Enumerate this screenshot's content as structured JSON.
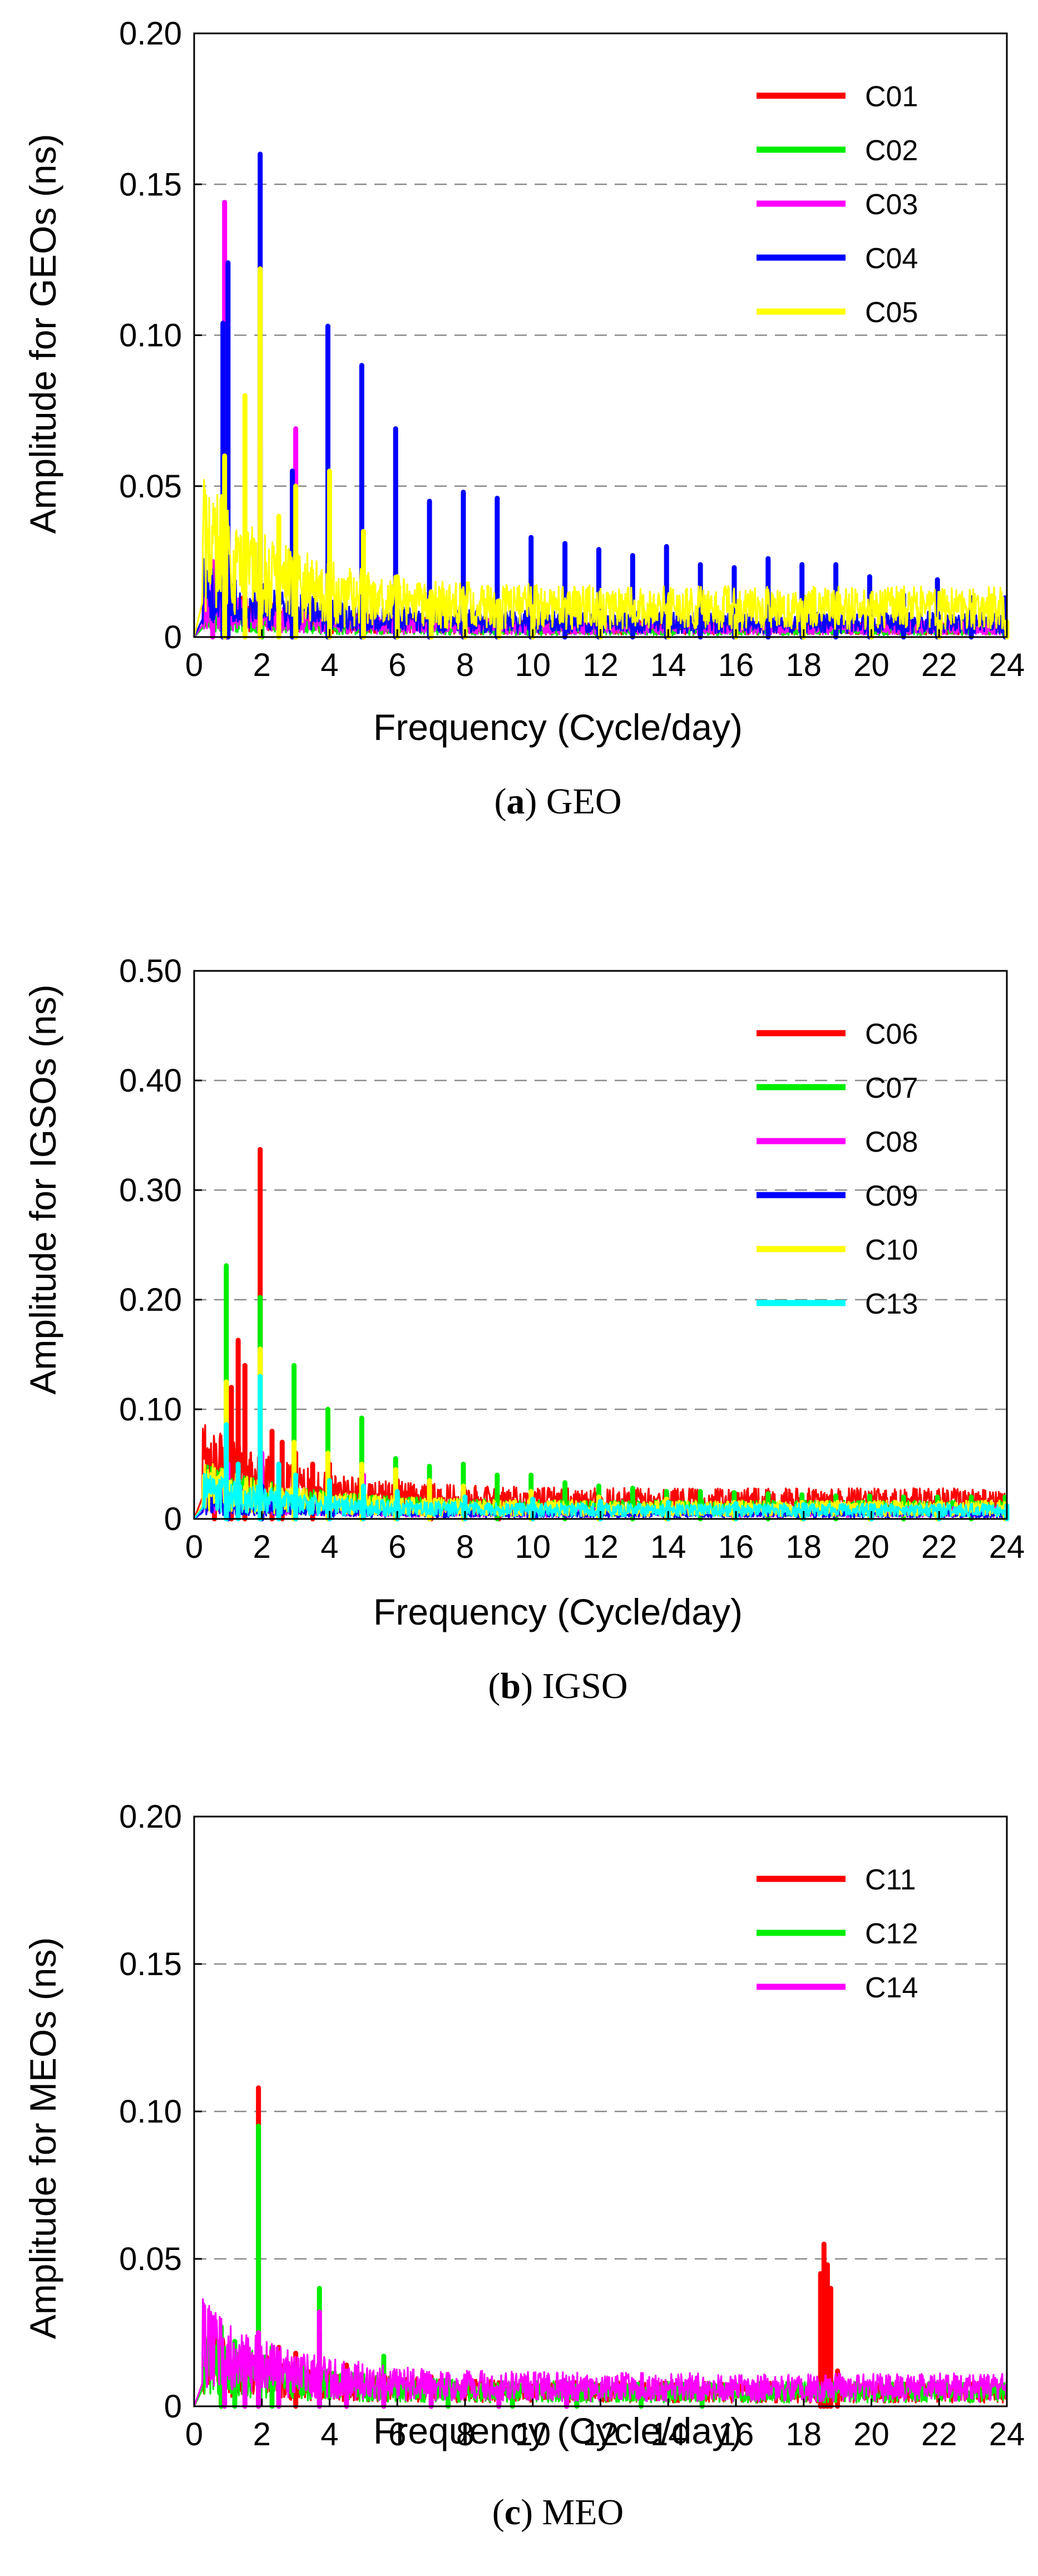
{
  "chart_data": [
    {
      "type": "line",
      "caption": {
        "open": "(",
        "letter": "a",
        "close": ") ",
        "text": "GEO"
      },
      "xlabel": "Frequency (Cycle/day)",
      "ylabel": "Amplitude for GEOs (ns)",
      "xlim": [
        0,
        24
      ],
      "ylim": [
        0,
        0.2
      ],
      "x_ticks": [
        "0",
        "2",
        "4",
        "6",
        "8",
        "10",
        "12",
        "14",
        "16",
        "18",
        "20",
        "22",
        "24"
      ],
      "y_ticks": [
        "0",
        "0.05",
        "0.10",
        "0.15",
        "0.20"
      ],
      "y_tick_values": [
        0,
        0.05,
        0.1,
        0.15,
        0.2
      ],
      "grid": "dashed horizontal",
      "legend_position": "top-right",
      "background_level": {
        "C01": 0.004,
        "C02": 0.003,
        "C03": 0.004,
        "C04": 0.006,
        "C05": 0.012
      },
      "series": [
        {
          "name": "C01",
          "color": "#ff0000",
          "peaks": [
            [
              0.95,
              0.006
            ],
            [
              2.0,
              0.01
            ],
            [
              3.0,
              0.007
            ],
            [
              5.0,
              0.005
            ]
          ]
        },
        {
          "name": "C02",
          "color": "#00ee00",
          "peaks": [
            [
              1.0,
              0.005
            ],
            [
              2.0,
              0.008
            ],
            [
              3.0,
              0.005
            ],
            [
              4.0,
              0.004
            ]
          ]
        },
        {
          "name": "C03",
          "color": "#ff00ff",
          "peaks": [
            [
              0.55,
              0.025
            ],
            [
              0.9,
              0.144
            ],
            [
              1.95,
              0.065
            ],
            [
              3.0,
              0.069
            ],
            [
              4.0,
              0.02
            ],
            [
              5.0,
              0.015
            ]
          ]
        },
        {
          "name": "C04",
          "color": "#0000ff",
          "peaks": [
            [
              0.85,
              0.104
            ],
            [
              1.0,
              0.124
            ],
            [
              1.95,
              0.16
            ],
            [
              2.9,
              0.055
            ],
            [
              3.95,
              0.103
            ],
            [
              4.95,
              0.09
            ],
            [
              5.95,
              0.069
            ],
            [
              6.95,
              0.045
            ],
            [
              7.95,
              0.048
            ],
            [
              8.95,
              0.046
            ],
            [
              9.95,
              0.033
            ],
            [
              10.95,
              0.031
            ],
            [
              11.95,
              0.029
            ],
            [
              12.95,
              0.027
            ],
            [
              13.95,
              0.03
            ],
            [
              14.95,
              0.024
            ],
            [
              15.95,
              0.023
            ],
            [
              16.95,
              0.026
            ],
            [
              17.95,
              0.024
            ],
            [
              18.95,
              0.024
            ],
            [
              19.95,
              0.02
            ],
            [
              20.95,
              0.014
            ],
            [
              21.95,
              0.019
            ],
            [
              22.95,
              0.013
            ],
            [
              23.95,
              0.013
            ]
          ]
        },
        {
          "name": "C05",
          "color": "#ffff00",
          "peaks": [
            [
              0.9,
              0.06
            ],
            [
              1.5,
              0.08
            ],
            [
              1.95,
              0.122
            ],
            [
              2.5,
              0.04
            ],
            [
              3.0,
              0.05
            ],
            [
              4.0,
              0.055
            ],
            [
              5.0,
              0.035
            ],
            [
              6.0,
              0.02
            ],
            [
              7.0,
              0.015
            ],
            [
              8.0,
              0.013
            ],
            [
              9.0,
              0.012
            ],
            [
              10.0,
              0.01
            ],
            [
              12.0,
              0.008
            ],
            [
              14.0,
              0.007
            ],
            [
              16.0,
              0.007
            ],
            [
              18.0,
              0.006
            ],
            [
              20.0,
              0.006
            ],
            [
              22.0,
              0.005
            ],
            [
              24.0,
              0.005
            ]
          ]
        }
      ]
    },
    {
      "type": "line",
      "caption": {
        "open": "(",
        "letter": "b",
        "close": ") ",
        "text": "IGSO"
      },
      "xlabel": "Frequency (Cycle/day)",
      "ylabel": "Amplitude for IGSOs (ns)",
      "xlim": [
        0,
        24
      ],
      "ylim": [
        0,
        0.5
      ],
      "x_ticks": [
        "0",
        "2",
        "4",
        "6",
        "8",
        "10",
        "12",
        "14",
        "16",
        "18",
        "20",
        "22",
        "24"
      ],
      "y_ticks": [
        "0",
        "0.10",
        "0.20",
        "0.30",
        "0.40",
        "0.50"
      ],
      "y_tick_values": [
        0,
        0.1,
        0.2,
        0.3,
        0.4,
        0.5
      ],
      "grid": "dashed horizontal",
      "legend_position": "top-right",
      "background_level": {
        "C06": 0.02,
        "C07": 0.012,
        "C08": 0.008,
        "C09": 0.006,
        "C10": 0.012,
        "C13": 0.01
      },
      "series": [
        {
          "name": "C06",
          "color": "#ff0000",
          "peaks": [
            [
              0.6,
              0.03
            ],
            [
              1.1,
              0.12
            ],
            [
              1.3,
              0.163
            ],
            [
              1.5,
              0.14
            ],
            [
              1.95,
              0.337
            ],
            [
              2.3,
              0.08
            ],
            [
              2.6,
              0.07
            ],
            [
              3.0,
              0.06
            ],
            [
              3.5,
              0.05
            ],
            [
              4.0,
              0.05
            ],
            [
              5.0,
              0.04
            ],
            [
              6.0,
              0.035
            ],
            [
              7.0,
              0.03
            ],
            [
              8.0,
              0.025
            ],
            [
              9.0,
              0.02
            ],
            [
              10.0,
              0.02
            ],
            [
              12.0,
              0.018
            ],
            [
              14.0,
              0.016
            ],
            [
              16.0,
              0.015
            ],
            [
              18.0,
              0.014
            ],
            [
              20.0,
              0.013
            ],
            [
              22.0,
              0.012
            ],
            [
              24.0,
              0.012
            ]
          ]
        },
        {
          "name": "C07",
          "color": "#00ee00",
          "peaks": [
            [
              0.95,
              0.231
            ],
            [
              1.95,
              0.202
            ],
            [
              2.95,
              0.14
            ],
            [
              3.95,
              0.1
            ],
            [
              4.95,
              0.092
            ],
            [
              5.95,
              0.055
            ],
            [
              6.95,
              0.048
            ],
            [
              7.95,
              0.05
            ],
            [
              8.95,
              0.04
            ],
            [
              9.95,
              0.04
            ],
            [
              10.95,
              0.033
            ],
            [
              11.95,
              0.03
            ],
            [
              12.95,
              0.028
            ],
            [
              13.95,
              0.025
            ],
            [
              14.95,
              0.025
            ],
            [
              15.95,
              0.024
            ],
            [
              16.95,
              0.023
            ],
            [
              17.95,
              0.022
            ],
            [
              18.95,
              0.021
            ],
            [
              19.95,
              0.021
            ],
            [
              20.95,
              0.02
            ],
            [
              21.95,
              0.02
            ],
            [
              22.95,
              0.02
            ],
            [
              23.95,
              0.02
            ]
          ]
        },
        {
          "name": "C08",
          "color": "#ff00ff",
          "peaks": [
            [
              1.0,
              0.05
            ],
            [
              2.0,
              0.06
            ],
            [
              3.0,
              0.04
            ],
            [
              4.0,
              0.03
            ],
            [
              5.0,
              0.04
            ],
            [
              6.0,
              0.02
            ],
            [
              8.0,
              0.015
            ],
            [
              10.0,
              0.012
            ]
          ]
        },
        {
          "name": "C09",
          "color": "#0000ff",
          "peaks": [
            [
              1.0,
              0.02
            ],
            [
              2.0,
              0.03
            ],
            [
              3.0,
              0.02
            ],
            [
              4.0,
              0.015
            ]
          ]
        },
        {
          "name": "C10",
          "color": "#ffff00",
          "peaks": [
            [
              0.95,
              0.125
            ],
            [
              1.95,
              0.155
            ],
            [
              2.95,
              0.07
            ],
            [
              3.95,
              0.06
            ],
            [
              4.95,
              0.05
            ],
            [
              5.95,
              0.045
            ],
            [
              6.95,
              0.035
            ],
            [
              7.95,
              0.03
            ],
            [
              9.95,
              0.025
            ],
            [
              11.95,
              0.02
            ],
            [
              13.95,
              0.018
            ],
            [
              15.95,
              0.015
            ],
            [
              17.95,
              0.015
            ],
            [
              19.95,
              0.014
            ],
            [
              21.95,
              0.013
            ],
            [
              23.95,
              0.013
            ]
          ]
        },
        {
          "name": "C13",
          "color": "#00ffff",
          "peaks": [
            [
              0.95,
              0.086
            ],
            [
              1.3,
              0.05
            ],
            [
              1.95,
              0.13
            ],
            [
              2.5,
              0.05
            ],
            [
              3.0,
              0.04
            ],
            [
              4.0,
              0.035
            ],
            [
              5.0,
              0.03
            ],
            [
              6.0,
              0.025
            ],
            [
              8.0,
              0.02
            ],
            [
              10.0,
              0.018
            ],
            [
              12.0,
              0.016
            ],
            [
              14.0,
              0.015
            ],
            [
              16.0,
              0.014
            ],
            [
              18.0,
              0.013
            ],
            [
              20.0,
              0.012
            ],
            [
              22.0,
              0.012
            ],
            [
              24.0,
              0.012
            ]
          ]
        }
      ]
    },
    {
      "type": "line",
      "caption": {
        "open": "(",
        "letter": "c",
        "close": ") ",
        "text": "MEO"
      },
      "xlabel": "Frequency (Cycle/day)",
      "ylabel": "Amplitude for MEOs (ns)",
      "xlim": [
        0,
        24
      ],
      "ylim": [
        0,
        0.2
      ],
      "x_ticks": [
        "0",
        "2",
        "4",
        "6",
        "8",
        "10",
        "12",
        "14",
        "16",
        "18",
        "20",
        "22",
        "24"
      ],
      "y_ticks": [
        "0",
        "0.05",
        "0.10",
        "0.15",
        "0.20"
      ],
      "y_tick_values": [
        0,
        0.05,
        0.1,
        0.15,
        0.2
      ],
      "grid": "dashed horizontal",
      "legend_position": "top-right",
      "background_level": {
        "C11": 0.006,
        "C12": 0.006,
        "C14": 0.008
      },
      "series": [
        {
          "name": "C11",
          "color": "#ff0000",
          "peaks": [
            [
              0.8,
              0.015
            ],
            [
              1.9,
              0.108
            ],
            [
              2.5,
              0.02
            ],
            [
              3.0,
              0.018
            ],
            [
              3.7,
              0.025
            ],
            [
              4.5,
              0.014
            ],
            [
              5.6,
              0.012
            ],
            [
              7.0,
              0.01
            ],
            [
              9.0,
              0.008
            ],
            [
              11.0,
              0.006
            ],
            [
              18.5,
              0.045
            ],
            [
              18.6,
              0.055
            ],
            [
              18.7,
              0.048
            ],
            [
              18.8,
              0.04
            ],
            [
              19.0,
              0.012
            ]
          ]
        },
        {
          "name": "C12",
          "color": "#00ee00",
          "peaks": [
            [
              0.8,
              0.027
            ],
            [
              1.2,
              0.022
            ],
            [
              1.9,
              0.095
            ],
            [
              2.3,
              0.02
            ],
            [
              3.7,
              0.04
            ],
            [
              5.6,
              0.017
            ],
            [
              7.5,
              0.01
            ],
            [
              9.4,
              0.008
            ],
            [
              11.3,
              0.007
            ],
            [
              13.2,
              0.006
            ],
            [
              15.0,
              0.005
            ]
          ]
        },
        {
          "name": "C14",
          "color": "#ff00ff",
          "peaks": [
            [
              0.9,
              0.015
            ],
            [
              1.5,
              0.02
            ],
            [
              1.9,
              0.025
            ],
            [
              2.5,
              0.018
            ],
            [
              3.7,
              0.032
            ],
            [
              4.5,
              0.012
            ],
            [
              5.6,
              0.01
            ],
            [
              7.0,
              0.008
            ],
            [
              9.0,
              0.006
            ],
            [
              11.0,
              0.005
            ]
          ]
        }
      ]
    }
  ]
}
